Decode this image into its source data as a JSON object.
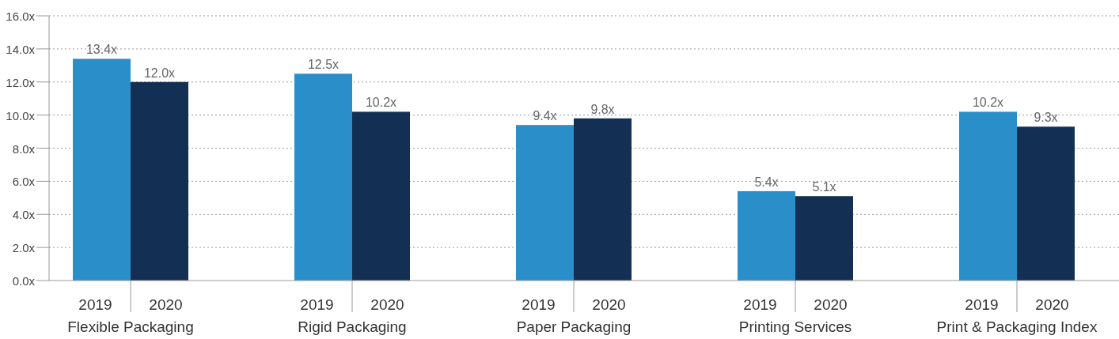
{
  "chart_data": {
    "type": "bar",
    "categories": [
      "Flexible Packaging",
      "Rigid Packaging",
      "Paper Packaging",
      "Printing Services",
      "Print & Packaging Index"
    ],
    "series": [
      {
        "name": "2019",
        "color": "#2a8fc8",
        "values": [
          13.4,
          12.5,
          9.4,
          5.4,
          10.2
        ],
        "value_labels": [
          "13.4x",
          "12.5x",
          "9.4x",
          "5.4x",
          "10.2x"
        ]
      },
      {
        "name": "2020",
        "color": "#132f53",
        "values": [
          12.0,
          10.2,
          9.8,
          5.1,
          9.3
        ],
        "value_labels": [
          "12.0x",
          "10.2x",
          "9.8x",
          "5.1x",
          "9.3x"
        ]
      }
    ],
    "ylim": [
      0,
      16
    ],
    "yticks": [
      {
        "value": 0,
        "label": "0.0x"
      },
      {
        "value": 2,
        "label": "2.0x"
      },
      {
        "value": 4,
        "label": "4.0x"
      },
      {
        "value": 6,
        "label": "6.0x"
      },
      {
        "value": 8,
        "label": "8.0x"
      },
      {
        "value": 10,
        "label": "10.0x"
      },
      {
        "value": 12,
        "label": "12.0x"
      },
      {
        "value": 14,
        "label": "14.0x"
      },
      {
        "value": 16,
        "label": "16.0x"
      }
    ],
    "grid": "y",
    "legend": false
  }
}
